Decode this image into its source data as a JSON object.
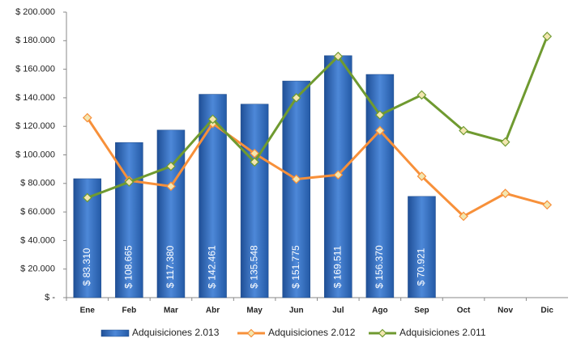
{
  "chart_data": {
    "type": "bar",
    "categories": [
      "Ene",
      "Feb",
      "Mar",
      "Abr",
      "May",
      "Jun",
      "Jul",
      "Ago",
      "Sep",
      "Oct",
      "Nov",
      "Dic"
    ],
    "series": [
      {
        "name": "Adquisiciones 2.013",
        "type": "bar",
        "color": "#3a70c0",
        "values": [
          83310,
          108665,
          117380,
          142461,
          135548,
          151775,
          169511,
          156370,
          70921,
          null,
          null,
          null
        ],
        "value_labels": [
          "$ 83.310",
          "$ 108.665",
          "$ 117.380",
          "$ 142.461",
          "$ 135.548",
          "$ 151.775",
          "$ 169.511",
          "$ 156.370",
          "$ 70.921",
          null,
          null,
          null
        ]
      },
      {
        "name": "Adquisiciones 2.012",
        "type": "line",
        "color": "#f7903a",
        "values": [
          126000,
          82000,
          78000,
          122000,
          101000,
          83000,
          86000,
          117000,
          85000,
          57000,
          73000,
          65000
        ]
      },
      {
        "name": "Adquisiciones 2.011",
        "type": "line",
        "color": "#6f9a30",
        "values": [
          70000,
          81000,
          92000,
          125000,
          95000,
          140000,
          169000,
          128000,
          142000,
          117000,
          109000,
          183000
        ]
      }
    ],
    "ylim": [
      0,
      200000
    ],
    "yticks": [
      {
        "value": 0,
        "label": "$ -"
      },
      {
        "value": 20000,
        "label": "$ 20.000"
      },
      {
        "value": 40000,
        "label": "$ 40.000"
      },
      {
        "value": 60000,
        "label": "$ 60.000"
      },
      {
        "value": 80000,
        "label": "$ 80.000"
      },
      {
        "value": 100000,
        "label": "$ 100.000"
      },
      {
        "value": 120000,
        "label": "$ 120.000"
      },
      {
        "value": 140000,
        "label": "$ 140.000"
      },
      {
        "value": 160000,
        "label": "$ 160.000"
      },
      {
        "value": 180000,
        "label": "$ 180.000"
      },
      {
        "value": 200000,
        "label": "$ 200.000"
      }
    ],
    "legend": "bottom"
  }
}
